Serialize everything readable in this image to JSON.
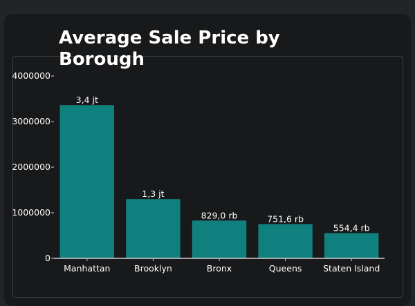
{
  "chart_data": {
    "type": "bar",
    "title": "Average Sale Price by Borough",
    "xlabel": "",
    "ylabel": "",
    "categories": [
      "Manhattan",
      "Brooklyn",
      "Bronx",
      "Queens",
      "Staten Island"
    ],
    "values": [
      3360000,
      1300000,
      829000,
      751600,
      554400
    ],
    "data_labels": [
      "3,4 jt",
      "1,3 jt",
      "829,0 rb",
      "751,6 rb",
      "554,4 rb"
    ],
    "yticks": [
      0,
      1000000,
      2000000,
      3000000,
      4000000
    ],
    "ytick_labels": [
      "0",
      "1000000",
      "2000000",
      "3000000",
      "4000000"
    ],
    "ylim": [
      0,
      4000000
    ],
    "grid": false,
    "colors": {
      "bar": "#10807f",
      "background": "#18191b",
      "text": "#ffffff",
      "axis": "#d0d0d0"
    }
  }
}
